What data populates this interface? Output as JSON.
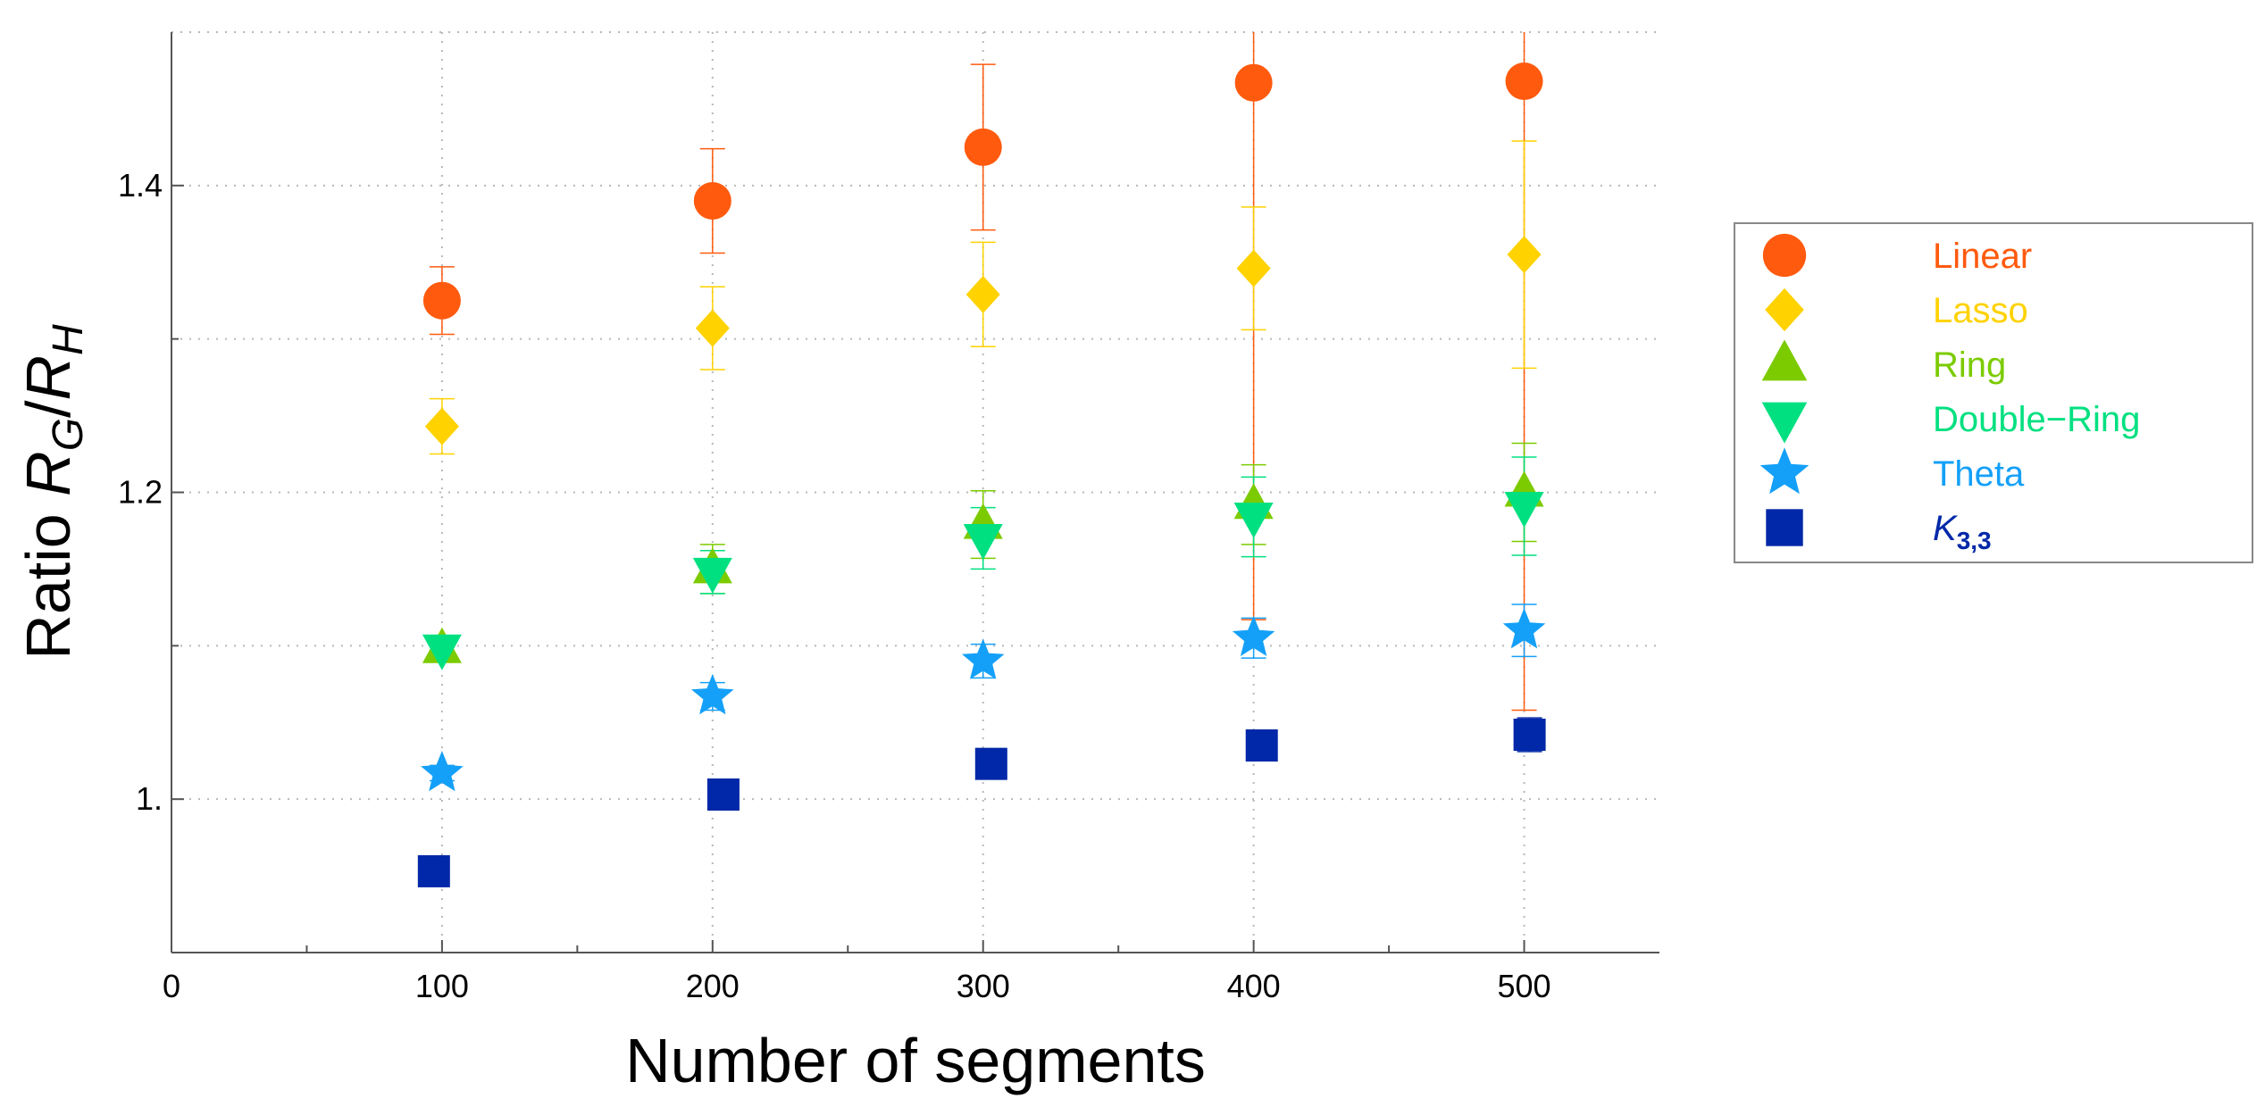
{
  "chart_data": {
    "type": "scatter",
    "title": "",
    "xlabel": "Number of segments",
    "ylabel": {
      "prefix": "Ratio ",
      "num_main": "R",
      "num_sub": "G",
      "slash": "/",
      "den_main": "R",
      "den_sub": "H"
    },
    "xlim": [
      0,
      550
    ],
    "ylim": [
      0.9,
      1.5
    ],
    "xticks": [
      0,
      100,
      200,
      300,
      400,
      500
    ],
    "xtick_labels": [
      "0",
      "100",
      "200",
      "300",
      "400",
      "500"
    ],
    "yticks": [
      1.0,
      1.2,
      1.4
    ],
    "ytick_labels": [
      "1.",
      "1.2",
      "1.4"
    ],
    "grid": true,
    "legend_position": "right",
    "series": [
      {
        "name": "Linear",
        "label_main": "Linear",
        "label_sub": "",
        "color": "#FF5A0E",
        "marker": "circle",
        "x": [
          100,
          200,
          300,
          400,
          500
        ],
        "y": [
          1.325,
          1.39,
          1.425,
          1.467,
          1.468
        ],
        "err": [
          0.022,
          0.034,
          0.054,
          0.35,
          0.41
        ]
      },
      {
        "name": "Lasso",
        "label_main": "Lasso",
        "label_sub": "",
        "color": "#FFD200",
        "marker": "diamond",
        "x": [
          100,
          200,
          300,
          400,
          500
        ],
        "y": [
          1.243,
          1.307,
          1.329,
          1.346,
          1.355
        ],
        "err": [
          0.018,
          0.027,
          0.034,
          0.04,
          0.074
        ]
      },
      {
        "name": "Ring",
        "label_main": "Ring",
        "label_sub": "",
        "color": "#7CCB00",
        "marker": "triangle-up",
        "x": [
          100,
          200,
          300,
          400,
          500
        ],
        "y": [
          1.098,
          1.15,
          1.179,
          1.192,
          1.2
        ],
        "err": [
          0.007,
          0.016,
          0.022,
          0.026,
          0.032
        ]
      },
      {
        "name": "Double-Ring",
        "label_main": "Double−Ring",
        "label_sub": "",
        "color": "#00E080",
        "marker": "triangle-down",
        "x": [
          100,
          200,
          300,
          400,
          500
        ],
        "y": [
          1.098,
          1.148,
          1.17,
          1.184,
          1.191
        ],
        "err": [
          0.007,
          0.014,
          0.02,
          0.026,
          0.032
        ]
      },
      {
        "name": "Theta",
        "label_main": "Theta",
        "label_sub": "",
        "color": "#14A0F8",
        "marker": "star",
        "x": [
          100,
          200,
          300,
          400,
          500
        ],
        "y": [
          1.017,
          1.067,
          1.09,
          1.105,
          1.11
        ],
        "err": [
          0.005,
          0.009,
          0.011,
          0.013,
          0.017
        ]
      },
      {
        "name": "K3,3",
        "label_main": "K",
        "label_sub": "3,3",
        "color": "#0028A8",
        "marker": "square",
        "x": [
          97,
          204,
          303,
          403,
          502
        ],
        "y": [
          0.953,
          1.003,
          1.023,
          1.035,
          1.042
        ],
        "err": [
          0.003,
          0.004,
          0.006,
          0.009,
          0.011
        ]
      }
    ]
  }
}
